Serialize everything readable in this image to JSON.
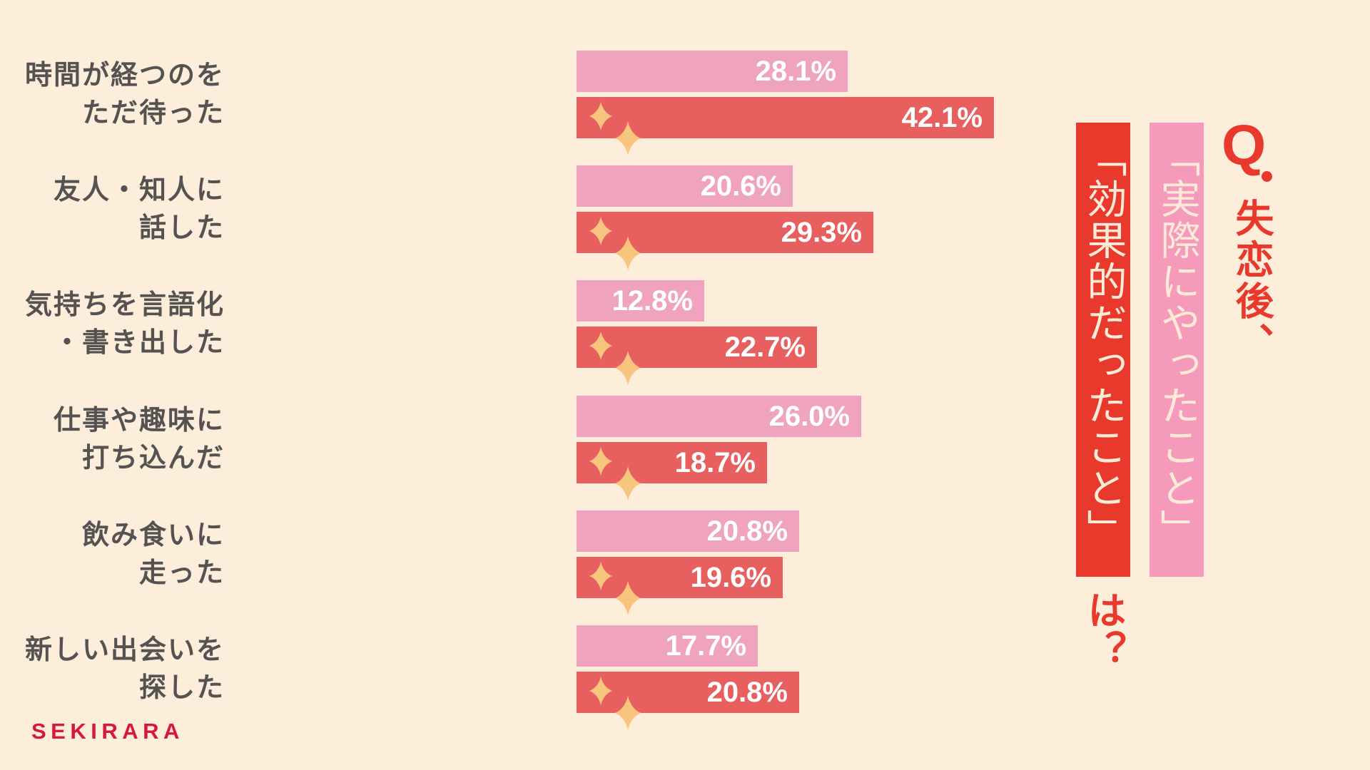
{
  "title": {
    "q_letter": "Q",
    "intro": "失恋後、",
    "actual_label": "「実際にやったこと」",
    "effective_label": "「効果的だったこと」",
    "tail": "は？"
  },
  "colors": {
    "background": "#FDEEDC",
    "actual_bar": "#EFA3BE",
    "effective_bar": "#E85F5F",
    "actual_header": "#F69ABC",
    "effective_header": "#E8392C",
    "sparkle": "#F7C57E",
    "label_text": "#555252",
    "logo": "#D8173F"
  },
  "logo": "SEKIRARA",
  "rows": [
    {
      "label": "時間が経つのを\nただ待った",
      "actual": "28.1%",
      "effective": "42.1%"
    },
    {
      "label": "友人・知人に\n話した",
      "actual": "20.6%",
      "effective": "29.3%"
    },
    {
      "label": "気持ちを言語化\n・書き出した",
      "actual": "12.8%",
      "effective": "22.7%"
    },
    {
      "label": "仕事や趣味に\n打ち込んだ",
      "actual": "26.0%",
      "effective": "18.7%"
    },
    {
      "label": "飲み食いに\n走った",
      "actual": "20.8%",
      "effective": "19.6%"
    },
    {
      "label": "新しい出会いを\n探した",
      "actual": "17.7%",
      "effective": "20.8%"
    }
  ],
  "chart_data": {
    "type": "bar",
    "orientation": "horizontal",
    "title": "Q. 失恋後、「実際にやったこと」「効果的だったこと」は？",
    "categories": [
      "時間が経つのをただ待った",
      "友人・知人に話した",
      "気持ちを言語化・書き出した",
      "仕事や趣味に打ち込んだ",
      "飲み食いに走った",
      "新しい出会いを探した"
    ],
    "series": [
      {
        "name": "実際にやったこと",
        "color": "#EFA3BE",
        "values": [
          28.1,
          20.6,
          12.8,
          26.0,
          20.8,
          17.7
        ]
      },
      {
        "name": "効果的だったこと",
        "color": "#E85F5F",
        "values": [
          42.1,
          29.3,
          22.7,
          18.7,
          19.6,
          20.8
        ]
      }
    ],
    "unit": "%",
    "xlabel": "",
    "ylabel": "",
    "grid": false,
    "legend_position": "right (vertical title columns)",
    "data_labels": true
  }
}
